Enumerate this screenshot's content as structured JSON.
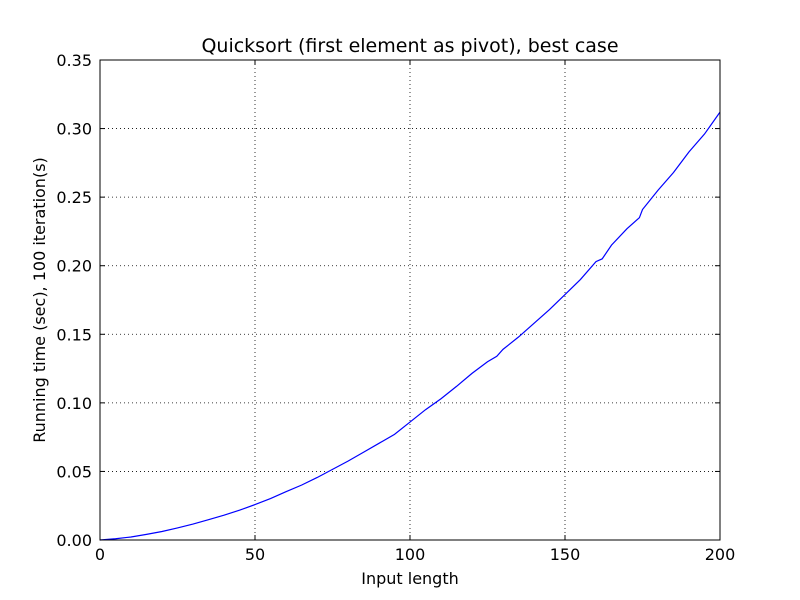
{
  "chart_data": {
    "type": "line",
    "title": "Quicksort (first element as pivot), best case",
    "xlabel": "Input length",
    "ylabel": "Running time (sec), 100 iteration(s)",
    "xlim": [
      0,
      200
    ],
    "ylim": [
      0.0,
      0.35
    ],
    "xticks": [
      0,
      50,
      100,
      150,
      200
    ],
    "xtick_labels": [
      "0",
      "50",
      "100",
      "150",
      "200"
    ],
    "yticks": [
      0.0,
      0.05,
      0.1,
      0.15,
      0.2,
      0.25,
      0.3,
      0.35
    ],
    "ytick_labels": [
      "0.00",
      "0.05",
      "0.10",
      "0.15",
      "0.20",
      "0.25",
      "0.30",
      "0.35"
    ],
    "grid": true,
    "legend": "none",
    "series": [
      {
        "color": "#0000ff",
        "x": [
          0,
          5,
          10,
          15,
          20,
          25,
          30,
          35,
          40,
          45,
          50,
          55,
          60,
          65,
          70,
          75,
          80,
          85,
          90,
          95,
          100,
          105,
          110,
          115,
          120,
          125,
          128,
          130,
          135,
          140,
          145,
          150,
          155,
          160,
          162,
          165,
          170,
          174,
          175,
          180,
          185,
          189,
          190,
          195,
          200
        ],
        "y": [
          0.0,
          0.0009,
          0.0022,
          0.0041,
          0.0062,
          0.0088,
          0.0116,
          0.0148,
          0.0181,
          0.0217,
          0.0258,
          0.0302,
          0.0352,
          0.04,
          0.0455,
          0.0515,
          0.0575,
          0.064,
          0.0705,
          0.077,
          0.086,
          0.095,
          0.103,
          0.112,
          0.1215,
          0.13,
          0.134,
          0.139,
          0.148,
          0.158,
          0.168,
          0.179,
          0.19,
          0.203,
          0.205,
          0.215,
          0.227,
          0.235,
          0.241,
          0.255,
          0.268,
          0.28,
          0.283,
          0.296,
          0.312
        ]
      }
    ]
  }
}
